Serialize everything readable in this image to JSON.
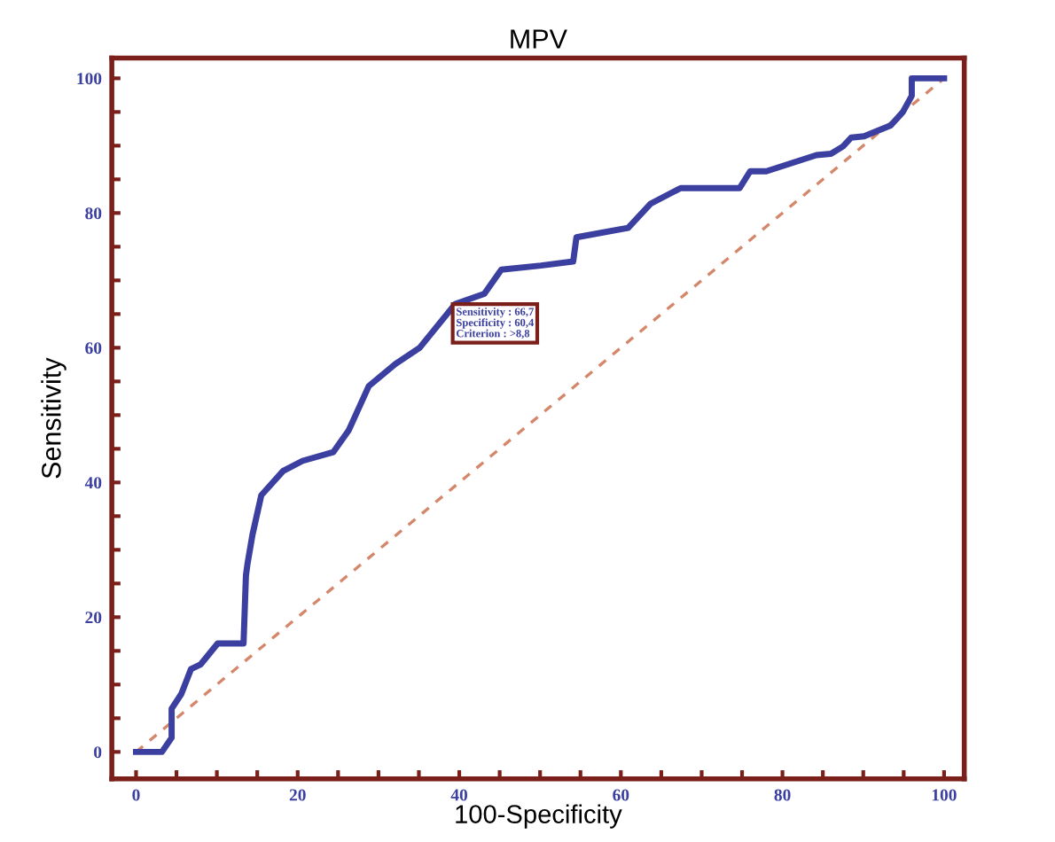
{
  "chart_data": {
    "type": "line",
    "title": "MPV",
    "xlabel": "100-Specificity",
    "ylabel": "Sensitivity",
    "xlim": [
      -3,
      102.5
    ],
    "ylim": [
      -4,
      103
    ],
    "xticks": [
      0,
      {
        "value": 5,
        "label": null
      },
      {
        "value": 10,
        "label": null
      },
      {
        "value": 15,
        "label": null
      },
      20,
      {
        "value": 25,
        "label": null
      },
      {
        "value": 30,
        "label": null
      },
      {
        "value": 35,
        "label": null
      },
      40,
      {
        "value": 45,
        "label": null
      },
      {
        "value": 50,
        "label": null
      },
      {
        "value": 55,
        "label": null
      },
      60,
      {
        "value": 65,
        "label": null
      },
      {
        "value": 70,
        "label": null
      },
      {
        "value": 75,
        "label": null
      },
      80,
      {
        "value": 85,
        "label": null
      },
      {
        "value": 90,
        "label": null
      },
      {
        "value": 95,
        "label": null
      },
      100
    ],
    "yticks": [
      0,
      {
        "value": 5,
        "label": null
      },
      {
        "value": 10,
        "label": null
      },
      {
        "value": 15,
        "label": null
      },
      20,
      {
        "value": 25,
        "label": null
      },
      {
        "value": 30,
        "label": null
      },
      {
        "value": 35,
        "label": null
      },
      40,
      {
        "value": 45,
        "label": null
      },
      {
        "value": 50,
        "label": null
      },
      {
        "value": 55,
        "label": null
      },
      60,
      {
        "value": 65,
        "label": null
      },
      {
        "value": 70,
        "label": null
      },
      {
        "value": 75,
        "label": null
      },
      80,
      {
        "value": 85,
        "label": null
      },
      {
        "value": 90,
        "label": null
      },
      {
        "value": 95,
        "label": null
      },
      100
    ],
    "grid": false,
    "legend": false,
    "marker": "none",
    "series": [
      {
        "color": "#3b3fa0",
        "line_style": "solid",
        "x": [
          0,
          3.2,
          4.4,
          4.4,
          5.6,
          6.8,
          8,
          10.1,
          13.3,
          13.6,
          13.8,
          14.4,
          15.5,
          18.2,
          20.6,
          24.4,
          26.3,
          28.8,
          32.1,
          35.1,
          39.5,
          43.1,
          45.2,
          50.1,
          54.1,
          54.5,
          60.9,
          63.7,
          67.4,
          74.7,
          76,
          78,
          84.2,
          86,
          87.5,
          88.5,
          90.1,
          93.4,
          94.9,
          96,
          96,
          100
        ],
        "values": [
          0,
          0,
          2.1,
          6.4,
          8.6,
          12.3,
          13,
          16.1,
          16.1,
          26.2,
          28,
          32.2,
          38.1,
          41.7,
          43.2,
          44.5,
          47.7,
          54.3,
          57.6,
          60,
          66.5,
          68,
          71.6,
          72.2,
          72.8,
          76.4,
          77.8,
          81.4,
          83.7,
          83.7,
          86.2,
          86.2,
          88.6,
          88.8,
          89.9,
          91.2,
          91.4,
          93,
          95,
          97.4,
          100,
          100
        ]
      },
      {
        "color": "#d4876a",
        "line_style": "dashed",
        "x": [
          0,
          100
        ],
        "values": [
          0,
          100
        ]
      }
    ],
    "annotations": [
      {
        "text": "Sensitivity : 66,7\nSpecificity : 60,4\nCriterion : >8,8",
        "x": 39.6,
        "y": 66.7
      }
    ]
  }
}
